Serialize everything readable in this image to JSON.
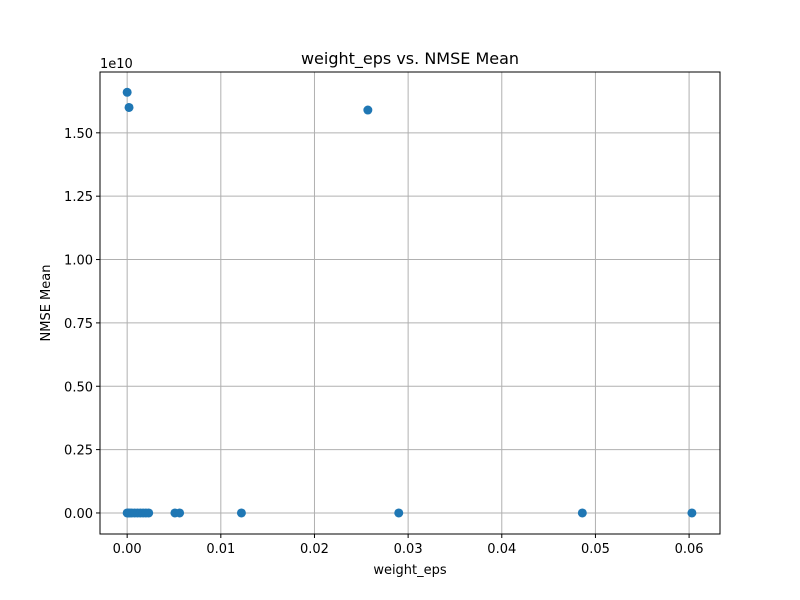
{
  "chart_data": {
    "type": "scatter",
    "title": "weight_eps vs. NMSE Mean",
    "xlabel": "weight_eps",
    "ylabel": "NMSE Mean",
    "y_offset_label": "1e10",
    "y_scale_factor": 10000000000,
    "xlim": [
      -0.0029,
      0.0633
    ],
    "ylim": [
      -0.083,
      1.74
    ],
    "x_ticks": [
      0.0,
      0.01,
      0.02,
      0.03,
      0.04,
      0.05,
      0.06
    ],
    "x_tick_labels": [
      "0.00",
      "0.01",
      "0.02",
      "0.03",
      "0.04",
      "0.05",
      "0.06"
    ],
    "y_ticks": [
      0.0,
      0.25,
      0.5,
      0.75,
      1.0,
      1.25,
      1.5
    ],
    "y_tick_labels": [
      "0.00",
      "0.25",
      "0.50",
      "0.75",
      "1.00",
      "1.25",
      "1.50"
    ],
    "grid": true,
    "marker_color": "#1f77b4",
    "series": [
      {
        "x": [
          0.0,
          0.0002,
          0.0257,
          0.0,
          0.0001,
          0.0003,
          0.0005,
          0.0008,
          0.0011,
          0.0014,
          0.0017,
          0.002,
          0.0023,
          0.0051,
          0.0056,
          0.0122,
          0.029,
          0.0486,
          0.0603
        ],
        "y": [
          1.66,
          1.6,
          1.59,
          0.0,
          0.0,
          0.0,
          0.0,
          0.0,
          0.0,
          0.0,
          0.0,
          0.0,
          0.0,
          0.0,
          0.0,
          0.0,
          0.0,
          0.0,
          0.0
        ]
      }
    ]
  }
}
